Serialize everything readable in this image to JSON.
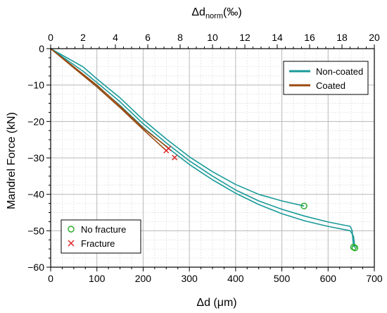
{
  "chart_data": {
    "type": "line",
    "xlabel": "Δd (μm)",
    "ylabel": "Mandrel Force (kN)",
    "top_xlabel_main": "Δd",
    "top_xlabel_sub": "norm",
    "top_xlabel_unit": "(‰)",
    "xlim": [
      0,
      700
    ],
    "ylim": [
      -60,
      0
    ],
    "top_xlim": [
      0,
      20
    ],
    "x_ticks": [
      0,
      100,
      200,
      300,
      400,
      500,
      600,
      700
    ],
    "y_ticks": [
      0,
      -10,
      -20,
      -30,
      -40,
      -50,
      -60
    ],
    "top_ticks": [
      0,
      2,
      4,
      6,
      8,
      10,
      12,
      14,
      16,
      18,
      20
    ],
    "grid": true,
    "colors": {
      "non_coated": "#1a9a9a",
      "coated": "#9a4a10",
      "no_fracture": "#22aa22",
      "fracture": "#dd2222"
    },
    "series": [
      {
        "name": "Non-coated",
        "group": "non_coated",
        "points": [
          [
            0,
            0
          ],
          [
            70,
            -5
          ],
          [
            100,
            -8.3
          ],
          [
            150,
            -13.5
          ],
          [
            200,
            -19.5
          ],
          [
            250,
            -24.8
          ],
          [
            300,
            -29.7
          ],
          [
            350,
            -33.8
          ],
          [
            400,
            -37.3
          ],
          [
            450,
            -40
          ],
          [
            500,
            -41.8
          ],
          [
            548,
            -43.2
          ]
        ]
      },
      {
        "name": "",
        "group": "non_coated",
        "points": [
          [
            0,
            0
          ],
          [
            70,
            -6.2
          ],
          [
            100,
            -9.3
          ],
          [
            150,
            -14.6
          ],
          [
            200,
            -20.6
          ],
          [
            250,
            -25.9
          ],
          [
            300,
            -30.8
          ],
          [
            350,
            -35
          ],
          [
            400,
            -38.8
          ],
          [
            450,
            -41.8
          ],
          [
            500,
            -44.1
          ],
          [
            550,
            -46
          ],
          [
            600,
            -47.6
          ],
          [
            648,
            -48.8
          ],
          [
            652,
            -50
          ],
          [
            655,
            -54.4
          ]
        ]
      },
      {
        "name": "",
        "group": "non_coated",
        "points": [
          [
            0,
            0
          ],
          [
            70,
            -7
          ],
          [
            100,
            -10.2
          ],
          [
            150,
            -15.6
          ],
          [
            200,
            -21.6
          ],
          [
            250,
            -26.9
          ],
          [
            300,
            -31.8
          ],
          [
            350,
            -36
          ],
          [
            400,
            -39.7
          ],
          [
            450,
            -42.8
          ],
          [
            500,
            -45.3
          ],
          [
            550,
            -47.3
          ],
          [
            600,
            -48.8
          ],
          [
            648,
            -50
          ],
          [
            655,
            -51.5
          ],
          [
            658,
            -54.7
          ]
        ]
      },
      {
        "name": "Coated",
        "group": "coated",
        "points": [
          [
            0,
            0
          ],
          [
            100,
            -10
          ],
          [
            150,
            -15.8
          ],
          [
            200,
            -21.8
          ],
          [
            256,
            -27.4
          ]
        ]
      },
      {
        "name": "",
        "group": "coated",
        "points": [
          [
            0,
            0
          ],
          [
            100,
            -10.5
          ],
          [
            150,
            -16.2
          ],
          [
            200,
            -22.2
          ],
          [
            250,
            -28
          ]
        ]
      }
    ],
    "no_fracture_points": [
      [
        548,
        -43.2
      ],
      [
        655,
        -54.5
      ],
      [
        658,
        -54.7
      ]
    ],
    "fracture_points": [
      [
        250,
        -28
      ],
      [
        255,
        -27.4
      ],
      [
        268,
        -29.9
      ]
    ],
    "legend_top": {
      "placement": "top-right",
      "entries": [
        {
          "label": "Non-coated",
          "group": "non_coated"
        },
        {
          "label": "Coated",
          "group": "coated"
        }
      ]
    },
    "legend_bottom": {
      "placement": "bottom-left",
      "entries": [
        {
          "label": "No fracture",
          "marker": "circle",
          "group": "no_fracture"
        },
        {
          "label": "Fracture",
          "marker": "x",
          "group": "fracture"
        }
      ]
    }
  }
}
